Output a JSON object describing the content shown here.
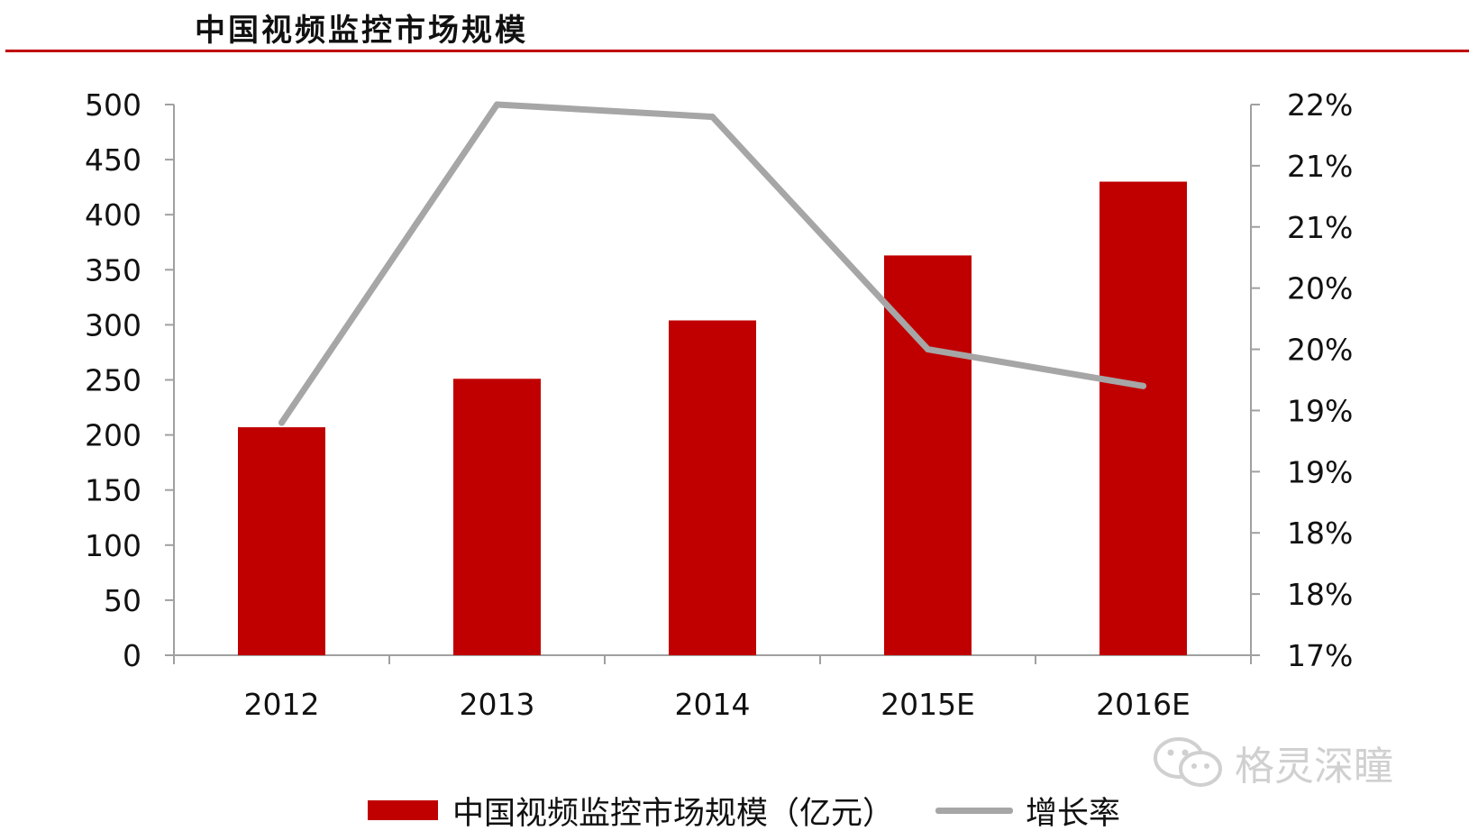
{
  "title": "中国视频监控市场规模",
  "watermark": "格灵深瞳",
  "colors": {
    "bar": "#c00000",
    "line": "#a6a6a6",
    "axis": "#a0a0a0",
    "title_rule": "#c00000"
  },
  "chart_data": {
    "type": "bar",
    "title": "中国视频监控市场规模",
    "categories": [
      "2012",
      "2013",
      "2014",
      "2015E",
      "2016E"
    ],
    "series": [
      {
        "name": "中国视频监控市场规模（亿元）",
        "type": "bar",
        "axis": "left",
        "values": [
          207,
          251,
          304,
          363,
          430
        ]
      },
      {
        "name": "增长率",
        "type": "line",
        "axis": "right",
        "values": [
          18.9,
          21.5,
          21.4,
          19.5,
          19.2
        ]
      }
    ],
    "y_left": {
      "min": 0,
      "max": 500,
      "step": 50,
      "ticks": [
        "0",
        "50",
        "100",
        "150",
        "200",
        "250",
        "300",
        "350",
        "400",
        "450",
        "500"
      ]
    },
    "y_right": {
      "min": 17,
      "max": 21.5,
      "ticks": [
        "17%",
        "18%",
        "18%",
        "19%",
        "19%",
        "20%",
        "20%",
        "21%",
        "21%",
        "22%"
      ]
    },
    "grid": false,
    "legend_position": "bottom"
  }
}
